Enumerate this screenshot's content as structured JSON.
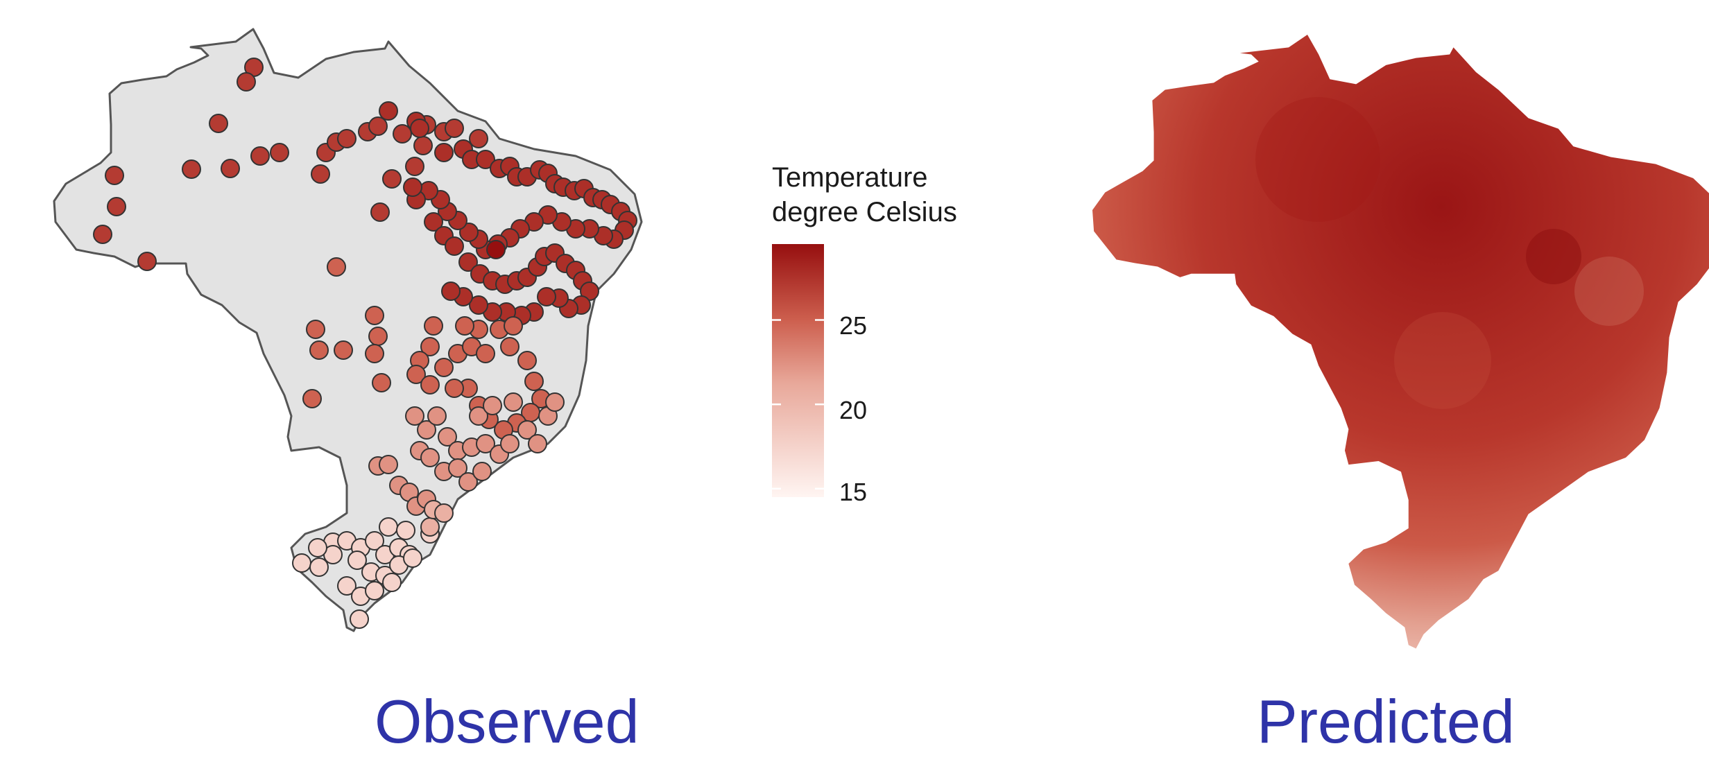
{
  "panels": {
    "observed": {
      "caption": "Observed"
    },
    "predicted": {
      "caption": "Predicted"
    }
  },
  "legend": {
    "title_line1": "Temperature",
    "title_line2": "degree Celsius",
    "range": [
      14.5,
      29.5
    ],
    "ticks": [
      {
        "value": 25,
        "label": "25"
      },
      {
        "value": 20,
        "label": "20"
      },
      {
        "value": 15,
        "label": "15"
      }
    ],
    "color_high": "#960f0f",
    "color_mid": "#d87b6a",
    "color_low": "#fff5f2"
  },
  "colors": {
    "map_fill": "#e3e3e3",
    "map_border": "#555555",
    "point_outline": "#333333",
    "caption": "#2e33a8"
  }
}
